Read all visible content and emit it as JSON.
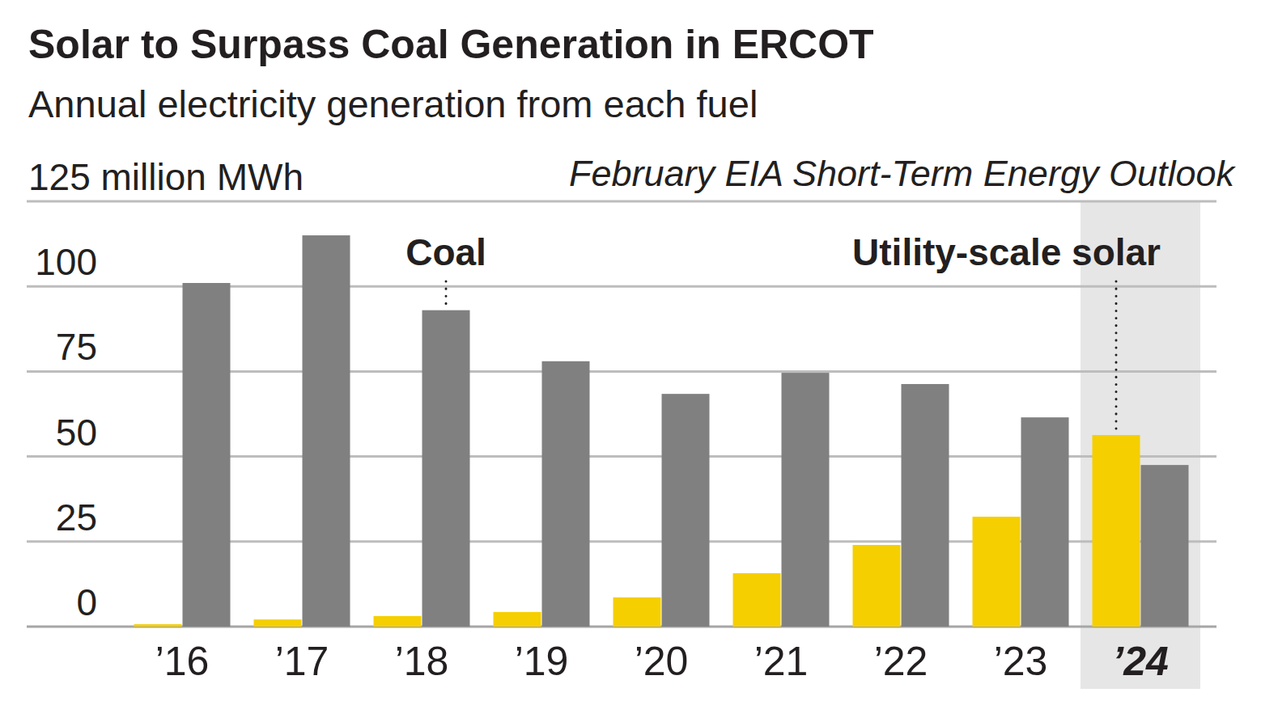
{
  "chart_data": {
    "type": "bar",
    "title": "Solar to Surpass Coal Generation in ERCOT",
    "subtitle": "Annual electricity generation from each fuel",
    "source": "February EIA Short-Term Energy Outlook",
    "categories": [
      "’16",
      "’17",
      "’18",
      "’19",
      "’20",
      "’21",
      "’22",
      "’23",
      "’24"
    ],
    "series": [
      {
        "name": "Utility-scale solar",
        "color": "#f5cf00",
        "values": [
          0.7,
          2.1,
          3.1,
          4.3,
          8.6,
          15.7,
          24,
          32.3,
          56.3
        ]
      },
      {
        "name": "Coal",
        "color": "#808080",
        "values": [
          101,
          115,
          93,
          78,
          68.4,
          74.6,
          71.3,
          61.5,
          47.5
        ]
      }
    ],
    "ylim": [
      0,
      125
    ],
    "yticks": [
      0,
      25,
      50,
      75,
      100,
      {
        "value": 125,
        "label": "125 million MWh"
      }
    ],
    "grid": true
  }
}
